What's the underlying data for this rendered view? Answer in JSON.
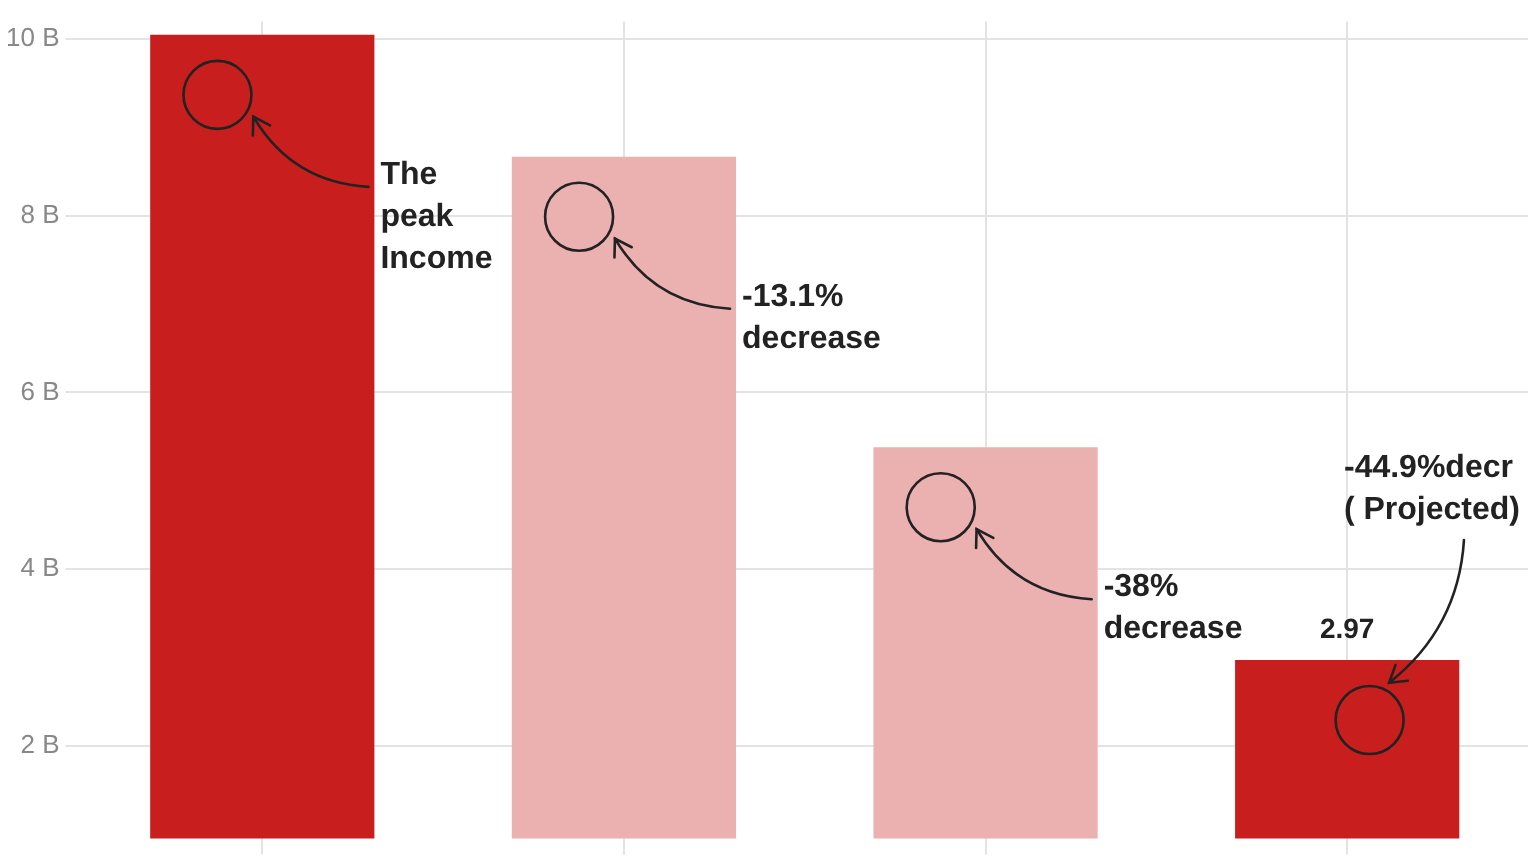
{
  "chart_data": {
    "type": "bar",
    "categories": [
      null,
      null,
      null,
      null
    ],
    "values": [
      10.05,
      8.67,
      5.38,
      2.97
    ],
    "colors": [
      "#c81e1e",
      "#ebb0b0",
      "#ebb0b0",
      "#c81e1e"
    ],
    "value_labels": [
      null,
      null,
      null,
      "2.97"
    ],
    "ylim": [
      0.95,
      10.2
    ],
    "yticks": [
      {
        "value": 2,
        "label": "2 B"
      },
      {
        "value": 4,
        "label": "4 B"
      },
      {
        "value": 6,
        "label": "6 B"
      },
      {
        "value": 8,
        "label": "8 B"
      },
      {
        "value": 10,
        "label": "10 B"
      }
    ],
    "grid": true,
    "annotations": [
      "The\npeak\nIncome",
      "-13.1%\ndecrease",
      "-38%\ndecrease",
      "-44.9%decr\n( Projected)"
    ]
  }
}
